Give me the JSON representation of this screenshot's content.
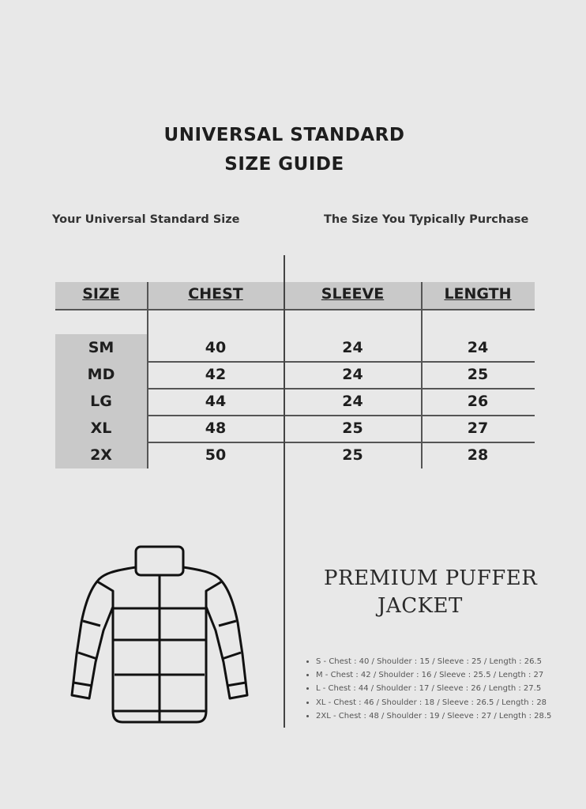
{
  "title": {
    "line1": "UNIVERSAL STANDARD",
    "line2": "SIZE GUIDE"
  },
  "subheads": {
    "left": "Your Universal Standard Size",
    "right": "The Size You Typically Purchase"
  },
  "table": {
    "headers": [
      "SIZE",
      "CHEST",
      "SLEEVE",
      "LENGTH"
    ],
    "rows": [
      [
        "SM",
        "40",
        "24",
        "24"
      ],
      [
        "MD",
        "42",
        "24",
        "25"
      ],
      [
        "LG",
        "44",
        "24",
        "26"
      ],
      [
        "XL",
        "48",
        "25",
        "27"
      ],
      [
        "2X",
        "50",
        "25",
        "28"
      ]
    ]
  },
  "product": {
    "line1": "PREMIUM PUFFER",
    "line2": "JACKET",
    "sizes": [
      "S - Chest : 40 / Shoulder : 15 / Sleeve : 25 / Length : 26.5",
      "M - Chest : 42 / Shoulder : 16 / Sleeve : 25.5 / Length : 27",
      "L - Chest : 44 / Shoulder : 17 / Sleeve : 26 / Length : 27.5",
      "XL - Chest : 46 / Shoulder : 18 / Sleeve : 26.5 / Length : 28",
      "2XL - Chest : 48 / Shoulder : 19 / Sleeve : 27 / Length : 28.5"
    ]
  },
  "icons": {
    "illustration": "puffer-jacket-icon"
  }
}
